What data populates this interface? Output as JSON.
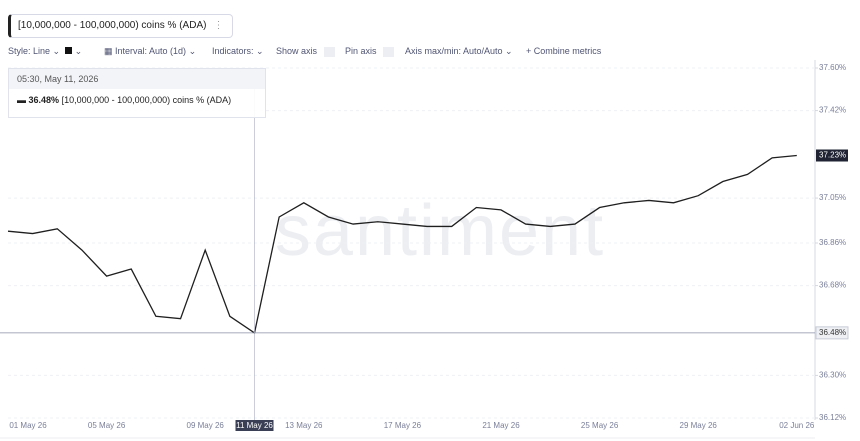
{
  "toolbar": {
    "metric": "[10,000,000 - 100,000,000) coins % (ADA)",
    "style": "Style: Line",
    "interval": "Interval: Auto (1d)",
    "indicators": "Indicators:",
    "show_axis": "Show axis",
    "pin_axis": "Pin axis",
    "axis_minmax": "Axis max/min: Auto/Auto",
    "combine": "Combine metrics"
  },
  "chart_data": {
    "type": "line",
    "watermark": "santiment",
    "categories": [
      "01 May 26",
      null,
      null,
      null,
      "05 May 26",
      null,
      null,
      null,
      "09 May 26",
      null,
      "11 May 26",
      null,
      "13 May 26",
      null,
      null,
      null,
      "17 May 26",
      null,
      null,
      null,
      "21 May 26",
      null,
      null,
      null,
      "25 May 26",
      null,
      null,
      null,
      "29 May 26",
      null,
      null,
      null,
      "02 Jun 26"
    ],
    "series": [
      {
        "name": "[10,000,000 - 100,000,000) coins % (ADA)",
        "color": "#1f1f1f",
        "values": [
          36.91,
          36.9,
          36.92,
          36.83,
          36.72,
          36.75,
          36.55,
          36.54,
          36.83,
          36.55,
          36.48,
          36.97,
          37.03,
          36.97,
          36.94,
          36.95,
          36.94,
          36.93,
          36.93,
          37.01,
          37.0,
          36.94,
          36.93,
          36.94,
          37.01,
          37.03,
          37.04,
          37.03,
          37.06,
          37.12,
          37.15,
          37.22,
          37.23
        ]
      }
    ],
    "ylim": [
      36.12,
      37.6
    ],
    "yticks": [
      {
        "value": 37.6,
        "label": "37.60%"
      },
      {
        "value": 37.42,
        "label": "37.42%"
      },
      {
        "value": 37.05,
        "label": "37.05%"
      },
      {
        "value": 36.86,
        "label": "36.86%"
      },
      {
        "value": 36.68,
        "label": "36.68%"
      },
      {
        "value": 36.3,
        "label": "36.30%"
      },
      {
        "value": 36.12,
        "label": "36.12%"
      }
    ],
    "last_value": {
      "value": 37.23,
      "label": "37.23%"
    },
    "crosshair": {
      "time": "05:30, May 11, 2026",
      "value": 36.48,
      "label": "36.48%"
    },
    "grid": true
  }
}
